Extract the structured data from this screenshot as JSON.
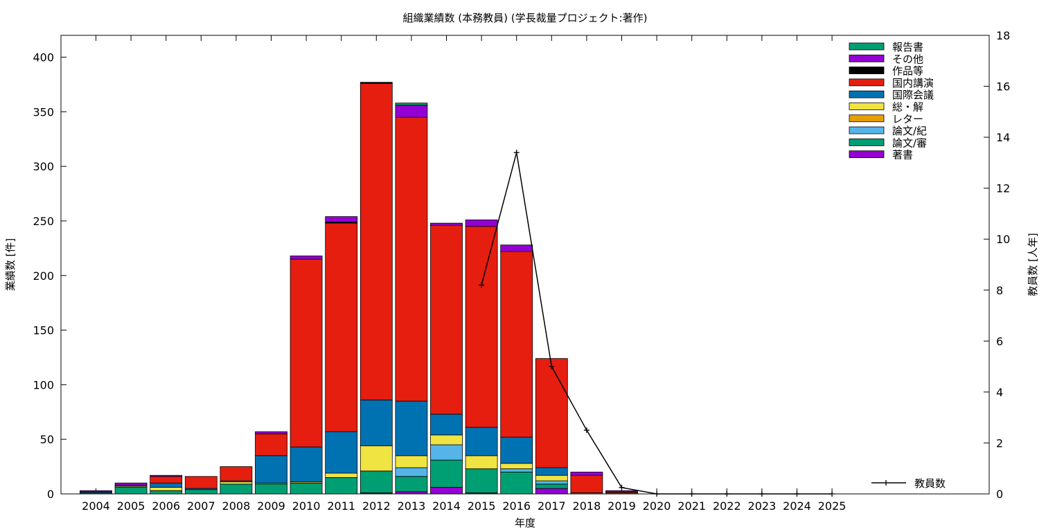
{
  "chart_data": {
    "type": "bar",
    "title": "組織業績数 (本務教員) (学長裁量プロジェクト:著作)",
    "xlabel": "年度",
    "ylabel": "業績数 [件]",
    "y2label": "教員数 [人年]",
    "ylim": [
      0,
      420
    ],
    "y2lim": [
      0,
      18
    ],
    "yticks": [
      0,
      50,
      100,
      150,
      200,
      250,
      300,
      350,
      400
    ],
    "y2ticks": [
      0,
      2,
      4,
      6,
      8,
      10,
      12,
      14,
      16,
      18
    ],
    "stacked": true,
    "grid": false,
    "legend_position": "top-right",
    "categories": [
      "2004",
      "2005",
      "2006",
      "2007",
      "2008",
      "2009",
      "2010",
      "2011",
      "2012",
      "2013",
      "2014",
      "2015",
      "2016",
      "2017",
      "2018",
      "2019",
      "2020",
      "2021",
      "2022",
      "2023",
      "2024",
      "2025"
    ],
    "series": [
      {
        "name": "著書",
        "color": "#9400d3",
        "values": [
          0,
          0,
          0,
          0,
          0,
          0,
          0,
          0,
          1,
          2,
          6,
          1,
          0,
          5,
          0,
          0,
          0,
          0,
          0,
          0,
          0,
          0
        ]
      },
      {
        "name": "論文/審",
        "color": "#009e73",
        "values": [
          1,
          6,
          3,
          4,
          9,
          9,
          10,
          15,
          20,
          14,
          25,
          22,
          20,
          4,
          1,
          1,
          0,
          0,
          0,
          0,
          0,
          0
        ]
      },
      {
        "name": "論文/紀",
        "color": "#56b4e9",
        "values": [
          0,
          0,
          0,
          0,
          0,
          0,
          0,
          0,
          0,
          8,
          14,
          0,
          3,
          3,
          0,
          0,
          0,
          0,
          0,
          0,
          0,
          0
        ]
      },
      {
        "name": "レター",
        "color": "#e69f00",
        "values": [
          0,
          0,
          0,
          0,
          0,
          0,
          0,
          0,
          0,
          0,
          0,
          0,
          0,
          0,
          0,
          0,
          0,
          0,
          0,
          0,
          0,
          0
        ]
      },
      {
        "name": "総・解",
        "color": "#f0e442",
        "values": [
          0,
          1,
          3,
          0,
          2,
          1,
          1,
          4,
          23,
          11,
          9,
          12,
          5,
          5,
          0,
          0,
          0,
          0,
          0,
          0,
          0,
          0
        ]
      },
      {
        "name": "国際会議",
        "color": "#0072b2",
        "values": [
          1,
          1,
          4,
          1,
          1,
          25,
          32,
          38,
          42,
          50,
          19,
          26,
          24,
          7,
          0,
          0,
          0,
          0,
          0,
          0,
          0,
          0
        ]
      },
      {
        "name": "国内講演",
        "color": "#e51e10",
        "values": [
          0,
          0,
          6,
          11,
          13,
          20,
          172,
          191,
          290,
          260,
          173,
          184,
          170,
          100,
          16,
          1,
          0,
          0,
          0,
          0,
          0,
          0
        ]
      },
      {
        "name": "作品等",
        "color": "#000000",
        "values": [
          0,
          0,
          0,
          0,
          0,
          0,
          0,
          1,
          1,
          0,
          0,
          0,
          0,
          0,
          0,
          0,
          0,
          0,
          0,
          0,
          0,
          0
        ]
      },
      {
        "name": "その他",
        "color": "#9400d3",
        "values": [
          1,
          2,
          1,
          0,
          0,
          2,
          3,
          5,
          0,
          11,
          2,
          6,
          6,
          0,
          3,
          1,
          0,
          0,
          0,
          0,
          0,
          0
        ]
      },
      {
        "name": "報告書",
        "color": "#009e73",
        "values": [
          0,
          0,
          0,
          0,
          0,
          0,
          0,
          0,
          0,
          2,
          0,
          0,
          0,
          0,
          0,
          0,
          0,
          0,
          0,
          0,
          0,
          0
        ]
      }
    ],
    "line_series": {
      "name": "教員数",
      "axis": "y2",
      "color": "#000000",
      "x": [
        "2015",
        "2016",
        "2017",
        "2018",
        "2019",
        "2020",
        "2021",
        "2022",
        "2023",
        "2024",
        "2025"
      ],
      "values": [
        8.2,
        13.4,
        5.0,
        2.5,
        0.25,
        0,
        0,
        0,
        0,
        0,
        0
      ]
    }
  }
}
